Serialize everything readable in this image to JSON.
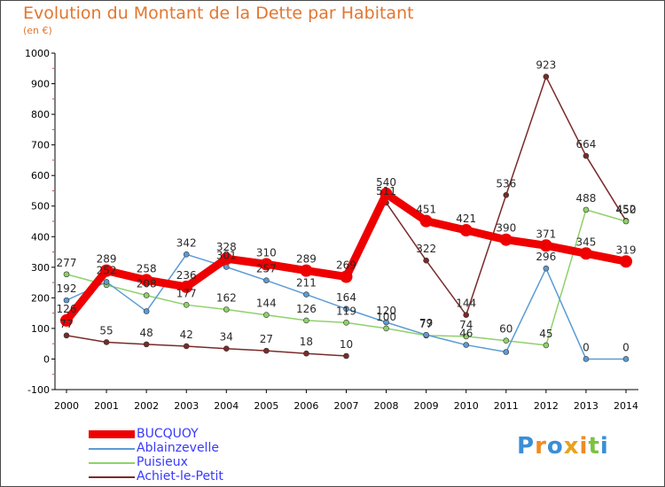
{
  "chart_data": {
    "type": "line",
    "title": "Evolution du Montant de la Dette par Habitant",
    "subtitle": "(en €)",
    "x": [
      "2000",
      "2001",
      "2002",
      "2003",
      "2004",
      "2005",
      "2006",
      "2007",
      "2008",
      "2009",
      "2010",
      "2011",
      "2012",
      "2013",
      "2014"
    ],
    "ylim": [
      -100,
      1000
    ],
    "yticks": [
      "-100",
      "0",
      "100",
      "200",
      "300",
      "400",
      "500",
      "600",
      "700",
      "800",
      "900",
      "1000"
    ],
    "grid": false,
    "legend_position": "bottom-left",
    "series": [
      {
        "name": "BUCQUOY",
        "color": "#ee0000",
        "values": [
          126,
          289,
          258,
          236,
          328,
          310,
          289,
          269,
          540,
          451,
          421,
          390,
          371,
          345,
          319
        ],
        "labels": [
          "126",
          "289",
          "258",
          "236",
          "328",
          "310",
          "289",
          "269",
          "540",
          "451",
          "421",
          "390",
          "371",
          "345",
          "319"
        ]
      },
      {
        "name": "Ablainzevelle",
        "color": "#5b9bd5",
        "values": [
          192,
          252,
          156,
          342,
          301,
          257,
          211,
          164,
          120,
          79,
          46,
          23,
          296,
          0,
          0
        ],
        "labels": [
          "192",
          "252",
          "",
          "342",
          "301",
          "257",
          "211",
          "164",
          "120",
          "79",
          "46",
          "",
          "296",
          "0",
          "0"
        ]
      },
      {
        "name": "Puisieux",
        "color": "#8fd16a",
        "values": [
          277,
          242,
          208,
          177,
          162,
          144,
          126,
          119,
          100,
          77,
          74,
          60,
          45,
          488,
          450
        ],
        "labels": [
          "277",
          "",
          "208",
          "177",
          "162",
          "144",
          "126",
          "119",
          "100",
          "77",
          "74",
          "60",
          "45",
          "488",
          "450"
        ]
      },
      {
        "name": "Achiet-le-Petit",
        "color": "#7a2a2a",
        "values": [
          77,
          55,
          48,
          42,
          34,
          27,
          18,
          10,
          511,
          322,
          144,
          536,
          923,
          664,
          452
        ],
        "labels": [
          "77",
          "55",
          "48",
          "42",
          "34",
          "27",
          "18",
          "10",
          "511",
          "322",
          "144",
          "536",
          "923",
          "664",
          "452"
        ]
      }
    ]
  },
  "legend": {
    "items": [
      {
        "name": "BUCQUOY",
        "color": "#ee0000"
      },
      {
        "name": "Ablainzevelle",
        "color": "#5b9bd5"
      },
      {
        "name": "Puisieux",
        "color": "#8fd16a"
      },
      {
        "name": "Achiet-le-Petit",
        "color": "#7a2a2a"
      }
    ]
  },
  "logo": {
    "letters": [
      "P",
      "r",
      "o",
      "x",
      "i",
      "t",
      "i"
    ],
    "colors": [
      "#3a8fd6",
      "#f08a24",
      "#3a8fd6",
      "#e8a21e",
      "#f08a24",
      "#7cc242",
      "#3a8fd6"
    ]
  }
}
